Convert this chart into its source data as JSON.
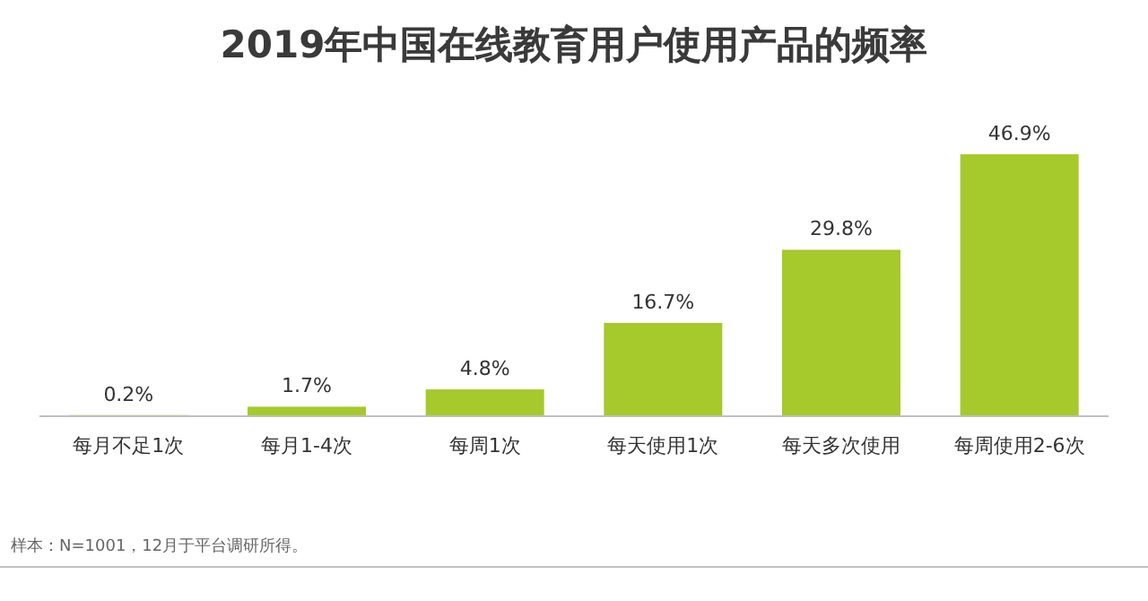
{
  "chart_data": {
    "type": "bar",
    "title": "2019年中国在线教育用户使用产品的频率",
    "categories": [
      "每月不足1次",
      "每月1-4次",
      "每周1次",
      "每天使用1次",
      "每天多次使用",
      "每周使用2-6次"
    ],
    "values": [
      0.2,
      1.7,
      4.8,
      16.7,
      29.8,
      46.9
    ],
    "value_labels": [
      "0.2%",
      "1.7%",
      "4.8%",
      "16.7%",
      "29.8%",
      "46.9%"
    ],
    "color": "#a6c92c",
    "annotations": [
      "样本：N=1001，12月于平台调研所得。"
    ]
  }
}
